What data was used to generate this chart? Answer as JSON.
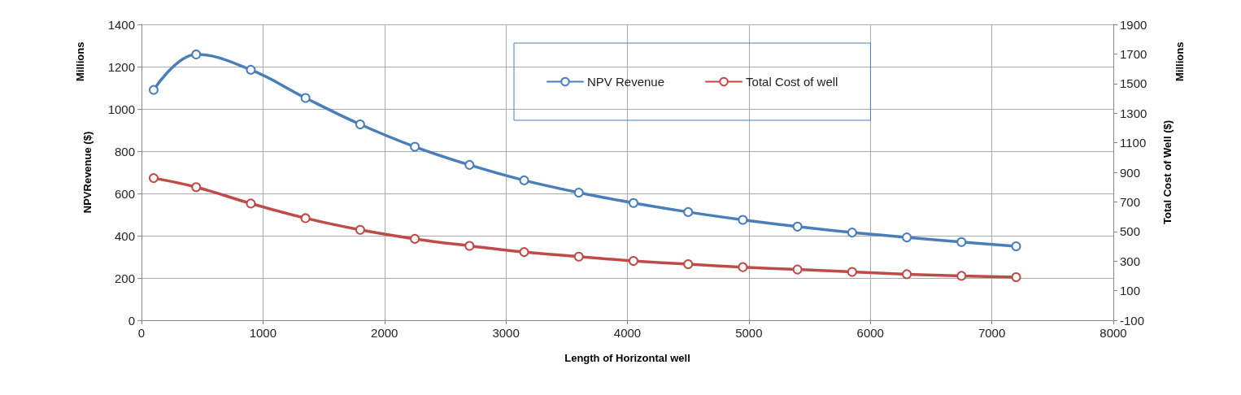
{
  "chart_data": {
    "type": "line",
    "xlabel": "Length of Horizontal well",
    "ylabel": "NPVRevenue ($)",
    "y2label": "Total Cost of Well ($)",
    "annotations": [
      "Millions",
      "Millions"
    ],
    "x": [
      100,
      450,
      900,
      1350,
      1800,
      2250,
      2700,
      3150,
      3600,
      4050,
      4500,
      4950,
      5400,
      5850,
      6300,
      6750,
      7200
    ],
    "series": [
      {
        "name": "NPV Revenue",
        "color": "#4a7ebb",
        "values": [
          1090,
          1258,
          1185,
          1052,
          927,
          821,
          735,
          662,
          604,
          555,
          512,
          475,
          443,
          415,
          392,
          370,
          350
        ]
      },
      {
        "name": "Total Cost of well",
        "color": "#be4b48",
        "axis": "y2",
        "values": [
          861,
          800,
          689,
          590,
          511,
          450,
          403,
          361,
          330,
          301,
          279,
          259,
          243,
          227,
          211,
          200,
          191
        ]
      }
    ],
    "xlim": [
      0,
      8000
    ],
    "xticks": [
      0,
      1000,
      2000,
      3000,
      4000,
      5000,
      6000,
      7000,
      8000
    ],
    "ylim": [
      0,
      1400
    ],
    "yticks": [
      0,
      200,
      400,
      600,
      800,
      1000,
      1200,
      1400
    ],
    "y2lim": [
      -100,
      1900
    ],
    "y2ticks": [
      -100,
      100,
      300,
      500,
      700,
      900,
      1100,
      1300,
      1500,
      1700,
      1900
    ],
    "grid": true,
    "legend": "top",
    "marker": "circle",
    "line_style": "solid"
  }
}
